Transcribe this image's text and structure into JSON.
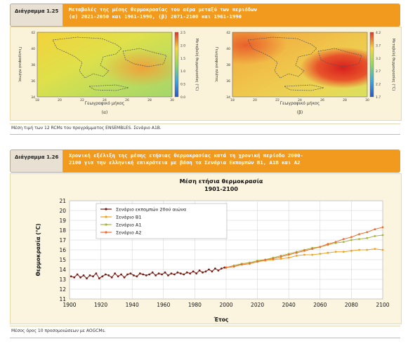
{
  "fig1": {
    "label": "Διάγραμμα 1.25",
    "title_line1": "Μεταβολές της μέσης θερμοκρασίας του αέρα μεταξύ των περιόδων",
    "title_line2": "(α) 2021-2050 και 1961-1990, (β) 2071-2100 και 1961-1990",
    "caption": "Μέση τιμή των 12 RCMs του προγράμματος ENSEMBLES. Σενάριο A1B.",
    "map_a": {
      "sublabel": "(α)",
      "xlabel": "Γεωγραφικό μήκος",
      "ylabel": "Γεωγραφικό πλάτος",
      "xticks": [
        "18",
        "20",
        "22",
        "24",
        "26",
        "28",
        "30"
      ],
      "yticks": [
        "42",
        "40",
        "38",
        "36",
        "34"
      ],
      "colorbar_label": "Μεταβολή θερμοκρασίας (°C)",
      "colorbar_ticks": [
        "2.5",
        "2.0",
        "1.5",
        "1.0",
        "0.5",
        "0.0"
      ]
    },
    "map_b": {
      "sublabel": "(β)",
      "xlabel": "Γεωγραφικό μήκος",
      "ylabel": "Γεωγραφικό πλάτος",
      "xticks": [
        "18",
        "20",
        "22",
        "24",
        "26",
        "28",
        "30"
      ],
      "yticks": [
        "42",
        "40",
        "38",
        "36",
        "34"
      ],
      "colorbar_label": "Μεταβολή θερμοκρασίας (°C)",
      "colorbar_ticks": [
        "4.2",
        "3.7",
        "3.2",
        "2.7",
        "2.2",
        "1.7"
      ]
    }
  },
  "fig2": {
    "label": "Διάγραμμα 1.26",
    "title_line1": "Χρονική εξέλιξη της μέσης ετήσιας θερμοκρασίας κατά τη χρονική περίοδο 2000-",
    "title_line2": "2100 για την ελληνική επικράτεια με βάση τα Σενάρια Εκπομπών Β1, Α1Β και Α2",
    "caption": "Μέσος όρος 10 προσομοιώσεων με AOGCMs."
  },
  "colors": {
    "header_orange": "#f29a1e",
    "c20": "#7a1a12",
    "b1": "#f0a020",
    "a1": "#a8b43a",
    "a2": "#ee6a2a"
  },
  "chart_data": {
    "type": "line",
    "title": "Μέση ετήσια θερμοκρασία",
    "subtitle": "1901-2100",
    "xlabel": "Έτος",
    "ylabel": "Θερμοκρασία (°C)",
    "xlim": [
      1900,
      2100
    ],
    "ylim": [
      11,
      21
    ],
    "xticks": [
      1900,
      1920,
      1940,
      1960,
      1980,
      2000,
      2020,
      2040,
      2060,
      2080,
      2100
    ],
    "yticks": [
      11,
      12,
      13,
      14,
      15,
      16,
      17,
      18,
      19,
      20,
      21
    ],
    "grid": true,
    "legend_position": "top-left",
    "series": [
      {
        "name": "Σενάριο εκπομπών 20ού αιώνα",
        "color": "#7a1a12",
        "x": [
          1901,
          1903,
          1905,
          1907,
          1909,
          1911,
          1913,
          1915,
          1917,
          1919,
          1921,
          1923,
          1925,
          1927,
          1929,
          1931,
          1933,
          1935,
          1937,
          1939,
          1941,
          1943,
          1945,
          1947,
          1949,
          1951,
          1953,
          1955,
          1957,
          1959,
          1961,
          1963,
          1965,
          1967,
          1969,
          1971,
          1973,
          1975,
          1977,
          1979,
          1981,
          1983,
          1985,
          1987,
          1989,
          1991,
          1993,
          1995,
          1997,
          1999
        ],
        "y": [
          13.3,
          13.2,
          13.5,
          13.2,
          13.4,
          13.1,
          13.4,
          13.3,
          13.6,
          13.1,
          13.3,
          13.5,
          13.4,
          13.2,
          13.6,
          13.3,
          13.5,
          13.2,
          13.5,
          13.6,
          13.4,
          13.3,
          13.6,
          13.5,
          13.4,
          13.5,
          13.7,
          13.4,
          13.6,
          13.5,
          13.7,
          13.4,
          13.6,
          13.5,
          13.7,
          13.6,
          13.5,
          13.7,
          13.6,
          13.8,
          13.6,
          13.9,
          13.7,
          13.8,
          14.0,
          13.8,
          14.1,
          13.9,
          14.1,
          14.2
        ]
      },
      {
        "name": "Σενάριο B1",
        "color": "#f0a020",
        "x": [
          2000,
          2005,
          2010,
          2015,
          2020,
          2025,
          2030,
          2035,
          2040,
          2045,
          2050,
          2055,
          2060,
          2065,
          2070,
          2075,
          2080,
          2085,
          2090,
          2095,
          2100
        ],
        "y": [
          14.2,
          14.4,
          14.5,
          14.6,
          14.8,
          14.9,
          15.0,
          15.1,
          15.2,
          15.4,
          15.5,
          15.5,
          15.6,
          15.7,
          15.8,
          15.8,
          15.9,
          16.0,
          16.0,
          16.1,
          16.0
        ]
      },
      {
        "name": "Σενάριο A1",
        "color": "#a8b43a",
        "x": [
          2000,
          2005,
          2010,
          2015,
          2020,
          2025,
          2030,
          2035,
          2040,
          2045,
          2050,
          2055,
          2060,
          2065,
          2070,
          2075,
          2080,
          2085,
          2090,
          2095,
          2100
        ],
        "y": [
          14.2,
          14.4,
          14.6,
          14.7,
          14.9,
          15.0,
          15.2,
          15.4,
          15.6,
          15.8,
          16.0,
          16.2,
          16.3,
          16.5,
          16.7,
          16.8,
          17.0,
          17.1,
          17.2,
          17.4,
          17.5
        ]
      },
      {
        "name": "Σενάριο A2",
        "color": "#ee6a2a",
        "x": [
          2000,
          2005,
          2010,
          2015,
          2020,
          2025,
          2030,
          2035,
          2040,
          2045,
          2050,
          2055,
          2060,
          2065,
          2070,
          2075,
          2080,
          2085,
          2090,
          2095,
          2100
        ],
        "y": [
          14.2,
          14.3,
          14.5,
          14.6,
          14.8,
          15.0,
          15.1,
          15.3,
          15.5,
          15.7,
          15.9,
          16.1,
          16.3,
          16.6,
          16.8,
          17.1,
          17.3,
          17.6,
          17.8,
          18.1,
          18.3
        ]
      }
    ]
  }
}
